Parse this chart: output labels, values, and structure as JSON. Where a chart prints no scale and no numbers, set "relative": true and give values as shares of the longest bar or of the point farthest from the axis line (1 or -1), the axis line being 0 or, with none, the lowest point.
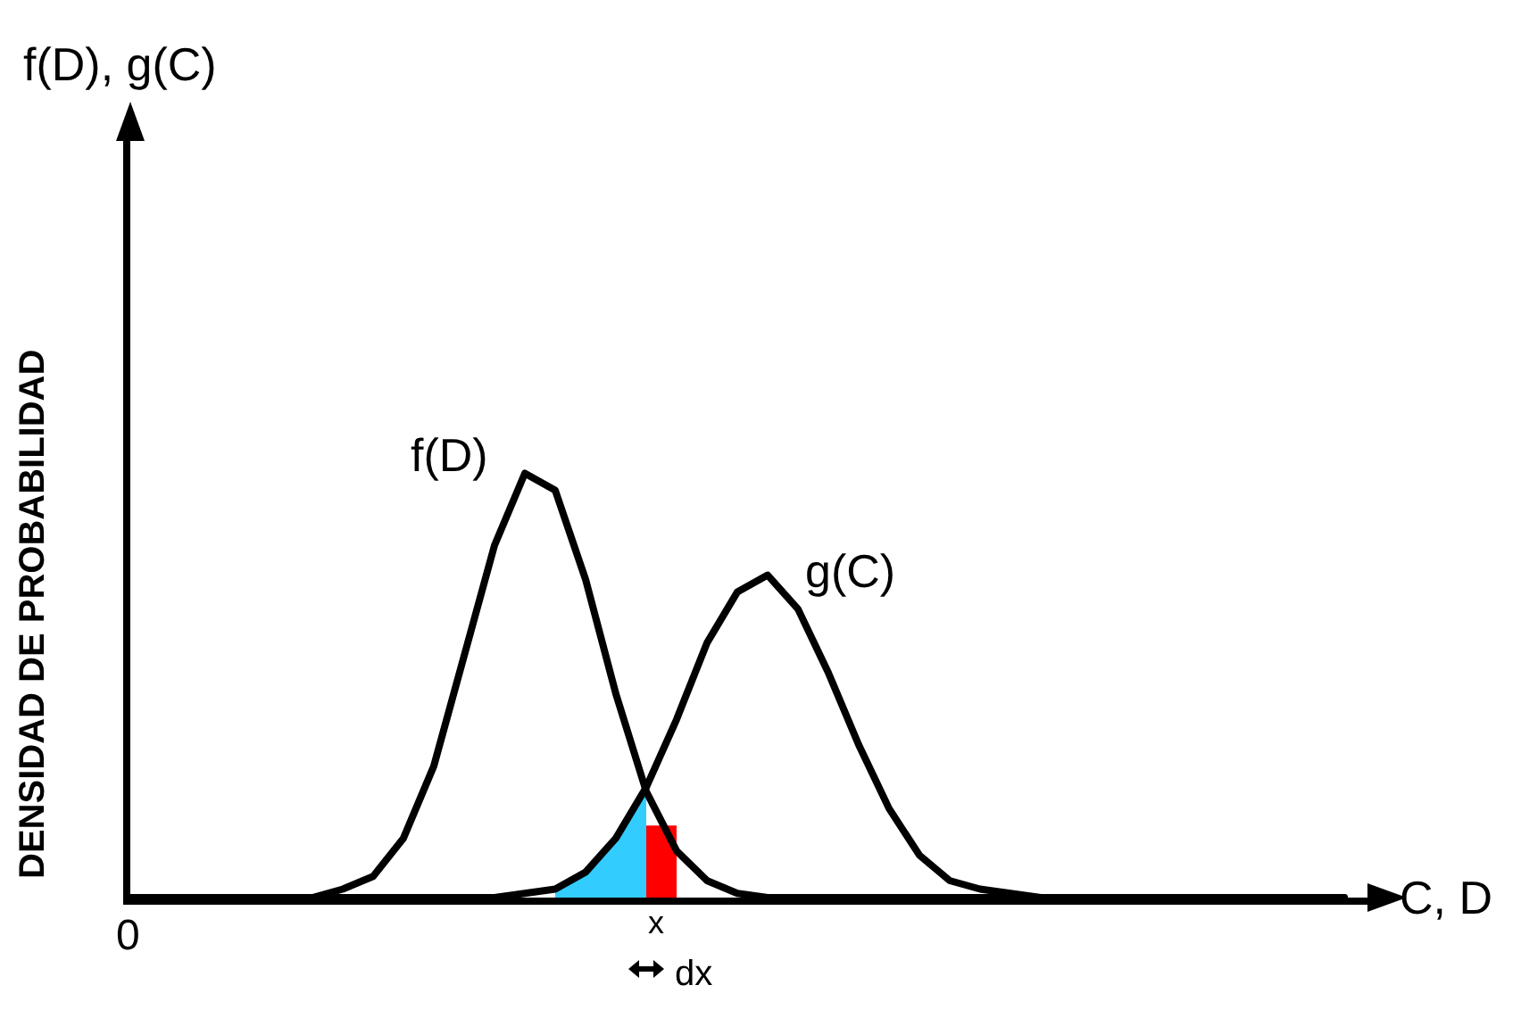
{
  "chart_data": {
    "type": "line",
    "relative": true,
    "xlabel": "C, D",
    "ylabel": "DENSIDAD DE PROBABILIDAD",
    "legend": false,
    "categories": [
      null,
      null,
      null,
      null,
      null,
      null,
      null,
      null,
      null,
      null,
      null,
      null,
      null,
      null,
      null,
      null,
      null,
      null,
      null,
      null,
      null,
      null,
      null,
      null,
      null,
      null,
      null,
      null,
      null,
      null,
      null,
      null,
      null,
      null,
      null,
      null,
      null,
      null,
      null,
      null,
      null
    ],
    "annotations": [
      "f(D), g(C)",
      "0",
      "x",
      "dx"
    ],
    "series": [
      {
        "name": "f(D)",
        "color": "#000000",
        "values": [
          0,
          0,
          0,
          0,
          0,
          0,
          0,
          0.02,
          0.05,
          0.14,
          0.31,
          0.57,
          0.83,
          1,
          0.96,
          0.75,
          0.48,
          0.25,
          0.11,
          0.04,
          0.01,
          0,
          0,
          0,
          0,
          0,
          0,
          0,
          0,
          0,
          0,
          0,
          0,
          0,
          0,
          0,
          0,
          0,
          0,
          0,
          0
        ]
      },
      {
        "name": "g(C)",
        "color": "#000000",
        "values": [
          0,
          0,
          0,
          0,
          0,
          0,
          0,
          0,
          0,
          0,
          0,
          0,
          0,
          0.01,
          0.02,
          0.06,
          0.14,
          0.26,
          0.42,
          0.6,
          0.72,
          0.76,
          0.68,
          0.53,
          0.36,
          0.21,
          0.1,
          0.04,
          0.02,
          0.01,
          0,
          0,
          0,
          0,
          0,
          0,
          0,
          0,
          0,
          0,
          0
        ]
      },
      {
        "type": "area",
        "color": "#33ccff",
        "values": [
          null,
          null,
          null,
          null,
          null,
          null,
          null,
          null,
          null,
          null,
          null,
          null,
          null,
          null,
          0.02,
          0.06,
          0.14,
          0.26,
          null,
          null,
          null,
          null,
          null,
          null,
          null,
          null,
          null,
          null,
          null,
          null,
          null,
          null,
          null,
          null,
          null,
          null,
          null,
          null,
          null,
          null,
          null
        ]
      },
      {
        "type": "area",
        "color": "#ff0000",
        "values": [
          null,
          null,
          null,
          null,
          null,
          null,
          null,
          null,
          null,
          null,
          null,
          null,
          null,
          null,
          null,
          null,
          null,
          0.17,
          0.17,
          null,
          null,
          null,
          null,
          null,
          null,
          null,
          null,
          null,
          null,
          null,
          null,
          null,
          null,
          null,
          null,
          null,
          null,
          null,
          null,
          null,
          null
        ]
      }
    ]
  }
}
